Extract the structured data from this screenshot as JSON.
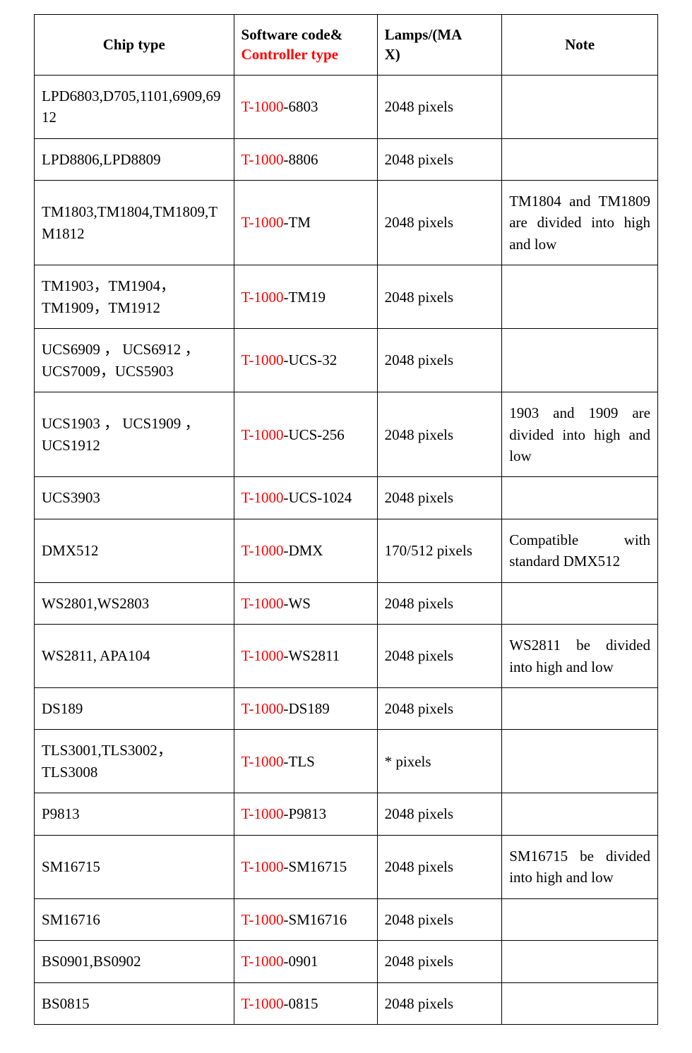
{
  "table": {
    "columns": {
      "chip": "Chip type",
      "code_line1": "Software code&",
      "code_line2": "Controller type",
      "lamps_line1": "Lamps/(MA",
      "lamps_line2": "X)",
      "note": "Note"
    },
    "code_prefix": "T-1000",
    "rows": [
      {
        "chip": "LPD6803,D705,1101,6909,6912",
        "code_suffix": "-6803",
        "lamps": "2048 pixels",
        "note": ""
      },
      {
        "chip": "LPD8806,LPD8809",
        "code_suffix": "-8806",
        "lamps": "2048 pixels",
        "note": ""
      },
      {
        "chip": "TM1803,TM1804,TM1809,TM1812",
        "code_suffix": "-TM",
        "lamps": "2048 pixels",
        "note": "TM1804 and TM1809 are divided into high and low"
      },
      {
        "chip": "TM1903，TM1904，TM1909，TM1912",
        "code_suffix": "-TM19",
        "lamps": "2048 pixels",
        "note": ""
      },
      {
        "chip": "UCS6909 ， UCS6912 ，UCS7009，UCS5903",
        "code_suffix": "-UCS-32",
        "lamps": "2048 pixels",
        "note": ""
      },
      {
        "chip": "UCS1903 ， UCS1909 ，UCS1912",
        "code_suffix": "-UCS-256",
        "lamps": "2048 pixels",
        "note": "1903 and 1909 are divided into high and low"
      },
      {
        "chip": "UCS3903",
        "code_suffix": "-UCS-1024",
        "lamps": "2048 pixels",
        "note": ""
      },
      {
        "chip": "DMX512",
        "code_suffix": "-DMX",
        "lamps": "170/512 pixels",
        "note": "Compatible with standard DMX512"
      },
      {
        "chip": "WS2801,WS2803",
        "code_suffix": "-WS",
        "lamps": "2048 pixels",
        "note": ""
      },
      {
        "chip": "WS2811, APA104",
        "code_suffix": "-WS2811",
        "lamps": "2048 pixels",
        "note": "WS2811 be divided into high and low"
      },
      {
        "chip": "DS189",
        "code_suffix": "-DS189",
        "lamps": "2048 pixels",
        "note": ""
      },
      {
        "chip": "TLS3001,TLS3002，TLS3008",
        "code_suffix": "-TLS",
        "lamps": "* pixels",
        "note": ""
      },
      {
        "chip": "P9813",
        "code_suffix": "-P9813",
        "lamps": "2048 pixels",
        "note": ""
      },
      {
        "chip": "SM16715",
        "code_suffix": "-SM16715",
        "lamps": "2048 pixels",
        "note": "SM16715 be divided into high and low"
      },
      {
        "chip": "SM16716",
        "code_suffix": "-SM16716",
        "lamps": "2048 pixels",
        "note": ""
      },
      {
        "chip": "BS0901,BS0902",
        "code_suffix": "-0901",
        "lamps": "2048 pixels",
        "note": ""
      },
      {
        "chip": "BS0815",
        "code_suffix": "-0815",
        "lamps": "2048 pixels",
        "note": ""
      }
    ]
  },
  "style": {
    "font_family": "Times New Roman",
    "font_size_pt": 16,
    "text_color": "#000000",
    "accent_color": "#ff0000",
    "border_color": "#000000",
    "background_color": "#ffffff",
    "column_widths_pct": [
      32,
      23,
      20,
      25
    ]
  }
}
